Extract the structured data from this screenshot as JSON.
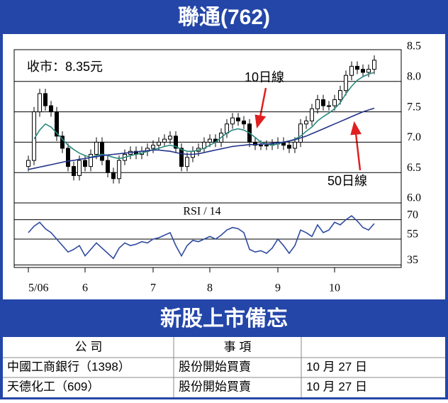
{
  "header": {
    "title": "聯通(762)"
  },
  "chart_data": [
    {
      "type": "candlestick",
      "annotations": [
        "收市：8.35元",
        "10日線",
        "50日線"
      ],
      "categories": [
        "5/06",
        null,
        null,
        null,
        null,
        null,
        null,
        null,
        null,
        null,
        "6",
        null,
        null,
        null,
        null,
        null,
        null,
        null,
        null,
        null,
        null,
        null,
        "7",
        null,
        null,
        null,
        null,
        null,
        null,
        null,
        null,
        null,
        "8",
        null,
        null,
        null,
        null,
        null,
        null,
        null,
        null,
        null,
        null,
        null,
        "9",
        null,
        null,
        null,
        null,
        null,
        null,
        null,
        null,
        null,
        "10",
        null,
        null,
        null,
        null,
        null,
        null,
        null
      ],
      "open": [
        6.6,
        6.7,
        7.5,
        7.8,
        7.6,
        7.5,
        7.1,
        6.9,
        6.6,
        6.45,
        6.7,
        6.6,
        6.8,
        7.0,
        6.7,
        6.5,
        6.4,
        6.7,
        6.8,
        6.85,
        6.8,
        6.85,
        6.9,
        6.95,
        7.0,
        7.05,
        7.1,
        6.9,
        6.6,
        6.75,
        6.85,
        6.9,
        7.0,
        7.05,
        7.0,
        7.15,
        7.3,
        7.4,
        7.35,
        7.3,
        7.0,
        6.95,
        6.95,
        6.95,
        6.97,
        7.0,
        6.95,
        6.9,
        7.0,
        7.3,
        7.35,
        7.55,
        7.7,
        7.6,
        7.6,
        7.7,
        7.85,
        8.1,
        8.25,
        8.2,
        8.15,
        8.2
      ],
      "high": [
        6.78,
        7.58,
        7.88,
        7.88,
        7.68,
        7.58,
        7.18,
        6.98,
        6.68,
        6.78,
        6.78,
        6.88,
        7.08,
        7.08,
        6.78,
        6.58,
        6.78,
        6.88,
        6.93,
        6.93,
        6.93,
        6.98,
        7.03,
        7.08,
        7.13,
        7.18,
        7.18,
        6.98,
        6.83,
        6.93,
        6.98,
        7.08,
        7.13,
        7.13,
        7.23,
        7.38,
        7.48,
        7.48,
        7.43,
        7.38,
        7.08,
        7.03,
        7.03,
        7.05,
        7.08,
        7.08,
        7.03,
        7.08,
        7.38,
        7.43,
        7.63,
        7.78,
        7.78,
        7.68,
        7.78,
        7.93,
        8.18,
        8.33,
        8.33,
        8.28,
        8.28,
        8.43
      ],
      "low": [
        6.52,
        6.62,
        7.42,
        7.52,
        7.42,
        7.02,
        6.82,
        6.52,
        6.37,
        6.37,
        6.52,
        6.52,
        6.72,
        6.62,
        6.42,
        6.32,
        6.32,
        6.62,
        6.72,
        6.72,
        6.72,
        6.77,
        6.82,
        6.87,
        6.92,
        6.97,
        6.82,
        6.52,
        6.52,
        6.67,
        6.77,
        6.82,
        6.92,
        6.92,
        6.92,
        7.07,
        7.22,
        7.27,
        7.22,
        6.92,
        6.87,
        6.87,
        6.87,
        6.87,
        6.89,
        6.87,
        6.82,
        6.82,
        6.92,
        7.22,
        7.27,
        7.47,
        7.52,
        7.52,
        7.52,
        7.62,
        7.77,
        8.02,
        8.12,
        8.07,
        8.07,
        8.12
      ],
      "close": [
        6.7,
        7.5,
        7.8,
        7.6,
        7.5,
        7.1,
        6.9,
        6.6,
        6.45,
        6.7,
        6.6,
        6.8,
        7.0,
        6.7,
        6.5,
        6.4,
        6.7,
        6.8,
        6.85,
        6.8,
        6.85,
        6.9,
        6.95,
        7.0,
        7.05,
        7.1,
        6.9,
        6.6,
        6.75,
        6.85,
        6.9,
        7.0,
        7.05,
        7.0,
        7.15,
        7.3,
        7.4,
        7.35,
        7.3,
        7.0,
        6.95,
        6.95,
        6.95,
        6.97,
        7.0,
        6.95,
        6.9,
        7.0,
        7.3,
        7.35,
        7.55,
        7.7,
        7.6,
        7.6,
        7.7,
        7.85,
        8.1,
        8.25,
        8.2,
        8.15,
        8.2,
        8.35
      ],
      "series": [
        {
          "color": "#2a8a80",
          "values": [
            null,
            7.05,
            7.2,
            7.3,
            7.25,
            7.15,
            7.05,
            6.95,
            6.88,
            6.82,
            6.78,
            6.75,
            6.78,
            6.8,
            6.78,
            6.75,
            6.73,
            6.75,
            6.78,
            6.8,
            6.82,
            6.85,
            6.88,
            6.9,
            6.93,
            6.95,
            6.93,
            6.88,
            6.85,
            6.85,
            6.87,
            6.9,
            6.95,
            7.0,
            7.08,
            7.15,
            7.2,
            7.22,
            7.2,
            7.15,
            7.08,
            7.0,
            6.97,
            6.95,
            6.97,
            7.0,
            7.02,
            7.05,
            7.1,
            7.18,
            7.25,
            7.35,
            7.42,
            7.48,
            7.55,
            7.65,
            7.8,
            7.92,
            8.02,
            8.08,
            8.12,
            8.15
          ]
        },
        {
          "color": "#23338a",
          "values": [
            6.55,
            6.57,
            6.59,
            6.61,
            6.63,
            6.65,
            6.67,
            6.69,
            6.7,
            6.72,
            6.73,
            6.75,
            6.76,
            6.78,
            6.79,
            6.8,
            6.81,
            6.82,
            6.83,
            6.84,
            6.85,
            6.86,
            6.87,
            6.87,
            6.86,
            6.85,
            6.83,
            6.81,
            6.8,
            6.8,
            6.81,
            6.83,
            6.85,
            6.87,
            6.89,
            6.91,
            6.93,
            6.94,
            6.95,
            6.96,
            6.96,
            6.97,
            6.97,
            6.98,
            6.99,
            7.0,
            7.02,
            7.04,
            7.07,
            7.1,
            7.14,
            7.18,
            7.22,
            7.26,
            7.3,
            7.34,
            7.38,
            7.42,
            7.46,
            7.5,
            7.53,
            7.56
          ]
        }
      ],
      "ylim": [
        6.0,
        8.5
      ],
      "yticks": [
        {
          "value": 6.0,
          "label": "6.0"
        },
        {
          "value": 6.5,
          "label": "6.5"
        },
        {
          "value": 7.0,
          "label": "7.0"
        },
        {
          "value": 7.5,
          "label": "7.5"
        },
        {
          "value": 8.0,
          "label": "8.0"
        },
        {
          "value": 8.5,
          "label": "8.5"
        }
      ],
      "grid": true
    },
    {
      "type": "line",
      "title": "RSI / 14",
      "color": "#2e4aa0",
      "values": [
        60,
        65,
        68,
        63,
        60,
        55,
        50,
        45,
        47,
        50,
        42,
        47,
        52,
        48,
        44,
        40,
        48,
        52,
        50,
        51,
        53,
        52,
        55,
        56,
        58,
        60,
        50,
        42,
        50,
        54,
        53,
        55,
        57,
        55,
        58,
        62,
        64,
        63,
        60,
        47,
        45,
        46,
        44,
        48,
        55,
        50,
        44,
        50,
        62,
        60,
        57,
        66,
        60,
        62,
        68,
        66,
        70,
        73,
        69,
        64,
        62,
        67
      ],
      "ylim": [
        33,
        83
      ],
      "yticks": [
        35,
        55,
        70
      ],
      "grid": true
    }
  ],
  "section": {
    "title": "新股上市備忘"
  },
  "table": {
    "header": [
      "公 司",
      "事 項"
    ],
    "rows": [
      [
        "中國工商銀行（1398）",
        "股份開始買賣",
        "10 月 27 日"
      ],
      [
        "天德化工（609）",
        "股份開始買賣",
        "10 月 27 日"
      ]
    ]
  }
}
